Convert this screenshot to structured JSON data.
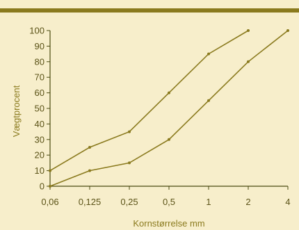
{
  "chart_data": {
    "type": "line",
    "title": "",
    "xlabel": "Kornstørrelse mm",
    "ylabel": "Vægtprocent",
    "x_tick_labels": [
      "0,06",
      "0,125",
      "0,25",
      "0,5",
      "1",
      "2",
      "4"
    ],
    "y_tick_labels": [
      "0",
      "10",
      "20",
      "30",
      "40",
      "50",
      "60",
      "70",
      "80",
      "90",
      "100"
    ],
    "ylim": [
      0,
      100
    ],
    "x_scale": "log (categorical doubling ticks)",
    "grid": false,
    "series": [
      {
        "x": [
          "0,06",
          "0,125",
          "0,25",
          "0,5",
          "1",
          "2"
        ],
        "values": [
          10,
          25,
          35,
          60,
          85,
          100
        ]
      },
      {
        "x": [
          "0,06",
          "0,125",
          "0,25",
          "0,5",
          "1",
          "2",
          "4"
        ],
        "values": [
          0,
          10,
          15,
          30,
          55,
          80,
          100
        ]
      }
    ],
    "colors": {
      "line": "#8a7a1e",
      "background": "#f7eecb",
      "top_bar": "#8a7a1e"
    }
  }
}
